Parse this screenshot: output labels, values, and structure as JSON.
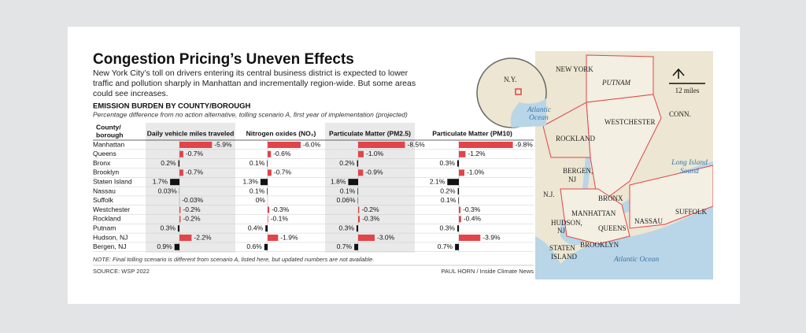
{
  "header": {
    "title": "Congestion Pricing’s Uneven Effects",
    "subtitle": [
      "New York City’s toll on drivers entering its central business district is expected to lower",
      "traffic and pollution sharply in Manhattan and incrementally region-wide. But some areas",
      "could see increases."
    ]
  },
  "table": {
    "heading": "EMISSION BURDEN BY COUNTY/BOROUGH",
    "caption": "Percentage difference from no action alternative, tolling scenario A, first year of implementation (projected)",
    "row_header": [
      "County/",
      "borough"
    ],
    "columns": [
      "Daily vehicle miles traveled",
      "Nitrogen oxides (NO₂)",
      "Particulate Matter (PM2.5)",
      "Particulate Matter (PM10)"
    ],
    "rows": [
      {
        "name": "Manhattan",
        "values": [
          -5.9,
          -6.0,
          -8.5,
          -9.8
        ],
        "value_labels": [
          "-5.9%",
          "-6.0%",
          "-8.5%",
          "-9.8%"
        ]
      },
      {
        "name": "Queens",
        "values": [
          -0.7,
          -0.6,
          -1.0,
          -1.2
        ],
        "value_labels": [
          "-0.7%",
          "-0.6%",
          "-1.0%",
          "-1.2%"
        ]
      },
      {
        "name": "Bronx",
        "values": [
          0.2,
          0.1,
          0.2,
          0.3
        ],
        "value_labels": [
          "0.2%",
          "0.1%",
          "0.2%",
          "0.3%"
        ]
      },
      {
        "name": "Brooklyn",
        "values": [
          -0.7,
          -0.7,
          -0.9,
          -1.0
        ],
        "value_labels": [
          "-0.7%",
          "-0.7%",
          "-0.9%",
          "-1.0%"
        ]
      },
      {
        "name": "Staten Island",
        "values": [
          1.7,
          1.3,
          1.8,
          2.1
        ],
        "value_labels": [
          "1.7%",
          "1.3%",
          "1.8%",
          "2.1%"
        ]
      },
      {
        "name": "Nassau",
        "values": [
          0.03,
          0.1,
          0.1,
          0.2
        ],
        "value_labels": [
          "0.03%",
          "0.1%",
          "0.1%",
          "0.2%"
        ]
      },
      {
        "name": "Suffolk",
        "values": [
          -0.03,
          0,
          0.06,
          0.1
        ],
        "value_labels": [
          "-0.03%",
          "0%",
          "0.06%",
          "0.1%"
        ]
      },
      {
        "name": "Westchester",
        "values": [
          -0.2,
          -0.3,
          -0.2,
          -0.3
        ],
        "value_labels": [
          "-0.2%",
          "-0.3%",
          "-0.2%",
          "-0.3%"
        ]
      },
      {
        "name": "Rockland",
        "values": [
          -0.2,
          -0.1,
          -0.3,
          -0.4
        ],
        "value_labels": [
          "-0.2%",
          "-0.1%",
          "-0.3%",
          "-0.4%"
        ]
      },
      {
        "name": "Putnam",
        "values": [
          0.3,
          0.4,
          0.3,
          0.3
        ],
        "value_labels": [
          "0.3%",
          "0.4%",
          "0.3%",
          "0.3%"
        ]
      },
      {
        "name": "Hudson, NJ",
        "values": [
          -2.2,
          -1.9,
          -3.0,
          -3.9
        ],
        "value_labels": [
          "-2.2%",
          "-1.9%",
          "-3.0%",
          "-3.9%"
        ]
      },
      {
        "name": "Bergen, NJ",
        "values": [
          0.9,
          0.6,
          0.7,
          0.7
        ],
        "value_labels": [
          "0.9%",
          "0.6%",
          "0.7%",
          "0.7%"
        ]
      }
    ]
  },
  "note": "NOTE: Final tolling scenario is different from scenario A, listed here, but updated numbers are not available.",
  "source": "SOURCE: WSP 2022",
  "credit": "PAUL HORN / Inside Climate News",
  "map": {
    "state": "NEW YORK",
    "inset_state": "N.Y.",
    "inset_ocean": [
      "Atlantic",
      "Ocean"
    ],
    "scale": "12 miles",
    "conn": "CONN.",
    "nj": "N.J.",
    "sound": [
      "Long Island",
      "Sound"
    ],
    "ocean": "Atlantic Ocean",
    "areas": {
      "putnam": "PUTNAM",
      "westchester": "WESTCHESTER",
      "rockland": "ROCKLAND",
      "bergen": [
        "BERGEN,",
        "NJ"
      ],
      "bronx": "BRONX",
      "manhattan": "MANHATTAN",
      "hudson": [
        "HUDSON,",
        "NJ"
      ],
      "queens": "QUEENS",
      "nassau": "NASSAU",
      "suffolk": "SUFFOLK",
      "brooklyn": "BROOKLYN",
      "staten": [
        "STATEN",
        "ISLAND"
      ]
    }
  }
}
